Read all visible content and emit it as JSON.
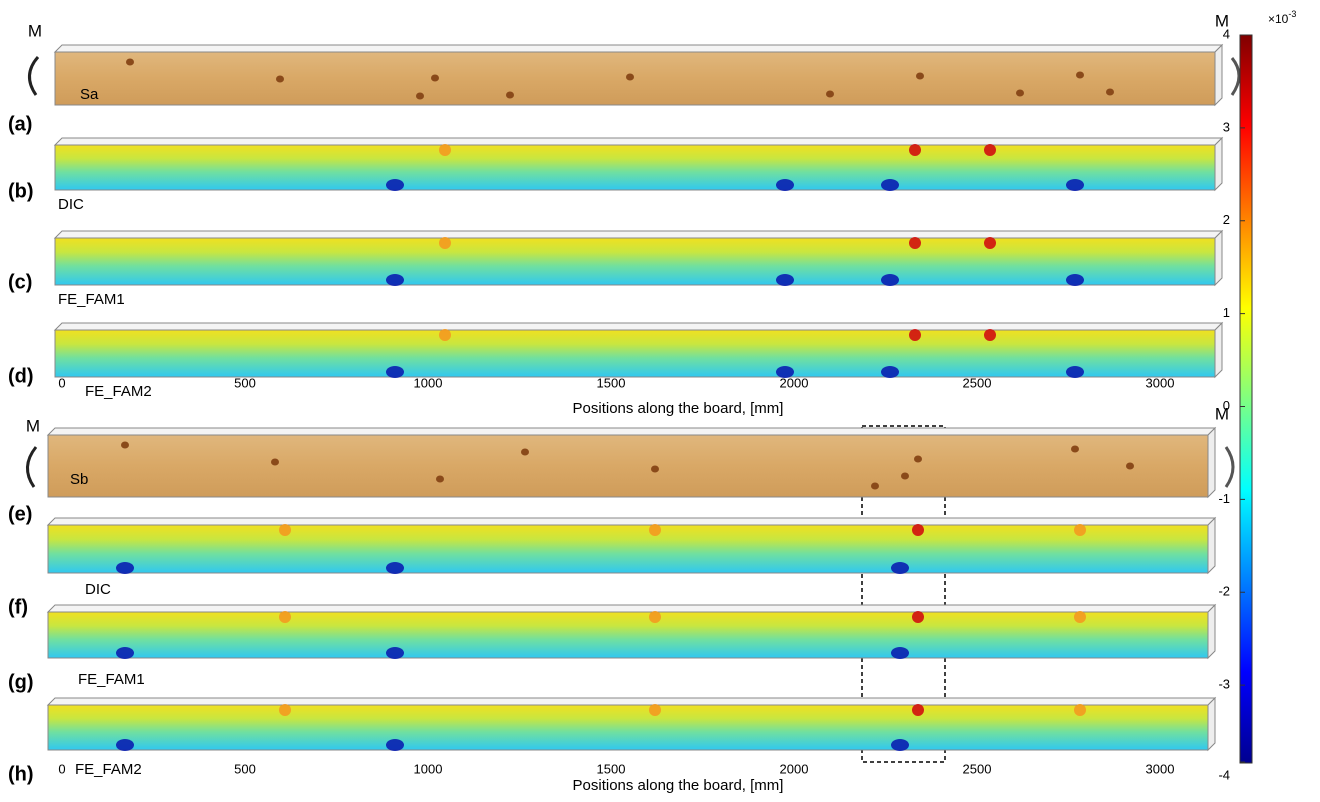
{
  "figure": {
    "moments": [
      "M",
      "M",
      "M",
      "M"
    ],
    "panels": [
      {
        "label": "(a)",
        "name": "Sa"
      },
      {
        "label": "(b)",
        "name": "DIC"
      },
      {
        "label": "(c)",
        "name": "FE_FAM1"
      },
      {
        "label": "(d)",
        "name": "FE_FAM2"
      },
      {
        "label": "(e)",
        "name": "Sb"
      },
      {
        "label": "(f)",
        "name": "DIC"
      },
      {
        "label": "(g)",
        "name": "FE_FAM1"
      },
      {
        "label": "(h)",
        "name": "FE_FAM2"
      }
    ],
    "axes": [
      {
        "ticks": [
          0,
          500,
          1000,
          1500,
          2000,
          2500,
          3000
        ],
        "title": "Positions along the board, [mm]"
      },
      {
        "ticks": [
          0,
          500,
          1000,
          1500,
          2000,
          2500,
          3000
        ],
        "title": "Positions along the board, [mm]"
      }
    ],
    "colorbar": {
      "multiplier": "×10",
      "power": "-3",
      "ticks": [
        4,
        3,
        2,
        1,
        0,
        -1,
        -2,
        -3,
        -4
      ]
    }
  }
}
